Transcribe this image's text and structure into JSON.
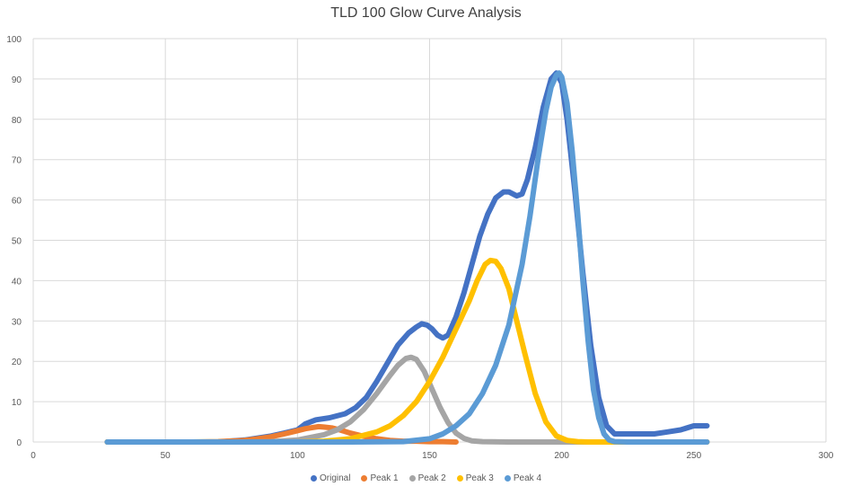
{
  "chart_data": {
    "type": "scatter",
    "title": "TLD 100 Glow Curve Analysis",
    "xlim": [
      0,
      300
    ],
    "ylim": [
      0,
      100
    ],
    "xticks": [
      0,
      50,
      100,
      150,
      200,
      250,
      300
    ],
    "yticks": [
      0,
      10,
      20,
      30,
      40,
      50,
      60,
      70,
      80,
      90,
      100
    ],
    "grid": true,
    "legend_position": "bottom",
    "series": [
      {
        "name": "Original",
        "color": "#4472C4",
        "x": [
          28,
          40,
          50,
          60,
          70,
          80,
          90,
          95,
          100,
          103,
          107,
          112,
          118,
          122,
          126,
          130,
          134,
          138,
          142,
          145,
          147,
          149,
          151,
          153,
          155,
          157,
          160,
          163,
          166,
          169,
          172,
          175,
          178,
          180,
          183,
          185,
          187,
          190,
          193,
          196,
          198,
          200,
          202,
          205,
          208,
          211,
          214,
          217,
          220,
          225,
          230,
          235,
          240,
          245,
          250,
          255
        ],
        "y": [
          0,
          0,
          0,
          0,
          0,
          0.5,
          1.5,
          2.2,
          3,
          4.5,
          5.5,
          6,
          7,
          8.5,
          11,
          15,
          19.5,
          24,
          27,
          28.5,
          29.3,
          29,
          28,
          26.5,
          25.8,
          26.5,
          31,
          37,
          44,
          51,
          56.5,
          60.5,
          62,
          62,
          61,
          61.5,
          65,
          73,
          83,
          90,
          91.5,
          89,
          80,
          62,
          42,
          24,
          11,
          4,
          2,
          2,
          2,
          2,
          2.5,
          3,
          4,
          4
        ]
      },
      {
        "name": "Peak 1",
        "color": "#ED7D31",
        "x": [
          28,
          60,
          70,
          80,
          85,
          90,
          95,
          100,
          103,
          106,
          108,
          110,
          113,
          116,
          120,
          125,
          130,
          135,
          140,
          145,
          150,
          155,
          160
        ],
        "y": [
          0,
          0,
          0.1,
          0.4,
          0.8,
          1.3,
          2,
          2.8,
          3.3,
          3.6,
          3.8,
          3.7,
          3.5,
          3,
          2.2,
          1.4,
          0.8,
          0.4,
          0.2,
          0.2,
          0.1,
          0.1,
          0
        ]
      },
      {
        "name": "Peak 2",
        "color": "#A5A5A5",
        "x": [
          28,
          80,
          90,
          100,
          110,
          115,
          120,
          125,
          130,
          135,
          138,
          141,
          143,
          145,
          148,
          151,
          154,
          157,
          160,
          163,
          166,
          170,
          180,
          200,
          220,
          255
        ],
        "y": [
          0,
          0,
          0.1,
          0.5,
          1.8,
          3,
          5,
          8,
          12,
          16.5,
          19,
          20.7,
          21,
          20.5,
          17.5,
          13,
          8.5,
          4.8,
          2.2,
          0.9,
          0.3,
          0.1,
          0,
          0,
          0,
          0
        ]
      },
      {
        "name": "Peak 3",
        "color": "#FFC000",
        "x": [
          28,
          100,
          110,
          120,
          130,
          135,
          140,
          145,
          150,
          155,
          160,
          165,
          168,
          171,
          173,
          175,
          177,
          180,
          183,
          186,
          190,
          194,
          198,
          202,
          206,
          210,
          220,
          255
        ],
        "y": [
          0,
          0,
          0.2,
          0.8,
          2.5,
          4,
          6.5,
          10,
          15,
          21,
          28,
          35,
          40,
          44,
          45,
          44.8,
          43,
          38,
          30,
          22,
          12,
          5,
          1.5,
          0.4,
          0.1,
          0,
          0,
          0
        ]
      },
      {
        "name": "Peak 4",
        "color": "#5B9BD5",
        "x": [
          28,
          120,
          140,
          150,
          155,
          160,
          165,
          170,
          175,
          180,
          185,
          188,
          191,
          194,
          196,
          198,
          199,
          200,
          202,
          204,
          206,
          208,
          210,
          212,
          214,
          216,
          218,
          220,
          225,
          255
        ],
        "y": [
          0,
          0,
          0.1,
          0.8,
          2,
          4,
          7,
          12,
          19,
          29,
          44,
          56,
          70,
          82,
          88,
          91,
          91.5,
          90.5,
          84,
          72,
          57,
          40,
          25,
          13,
          6,
          2,
          0.5,
          0.1,
          0,
          0
        ]
      }
    ]
  }
}
